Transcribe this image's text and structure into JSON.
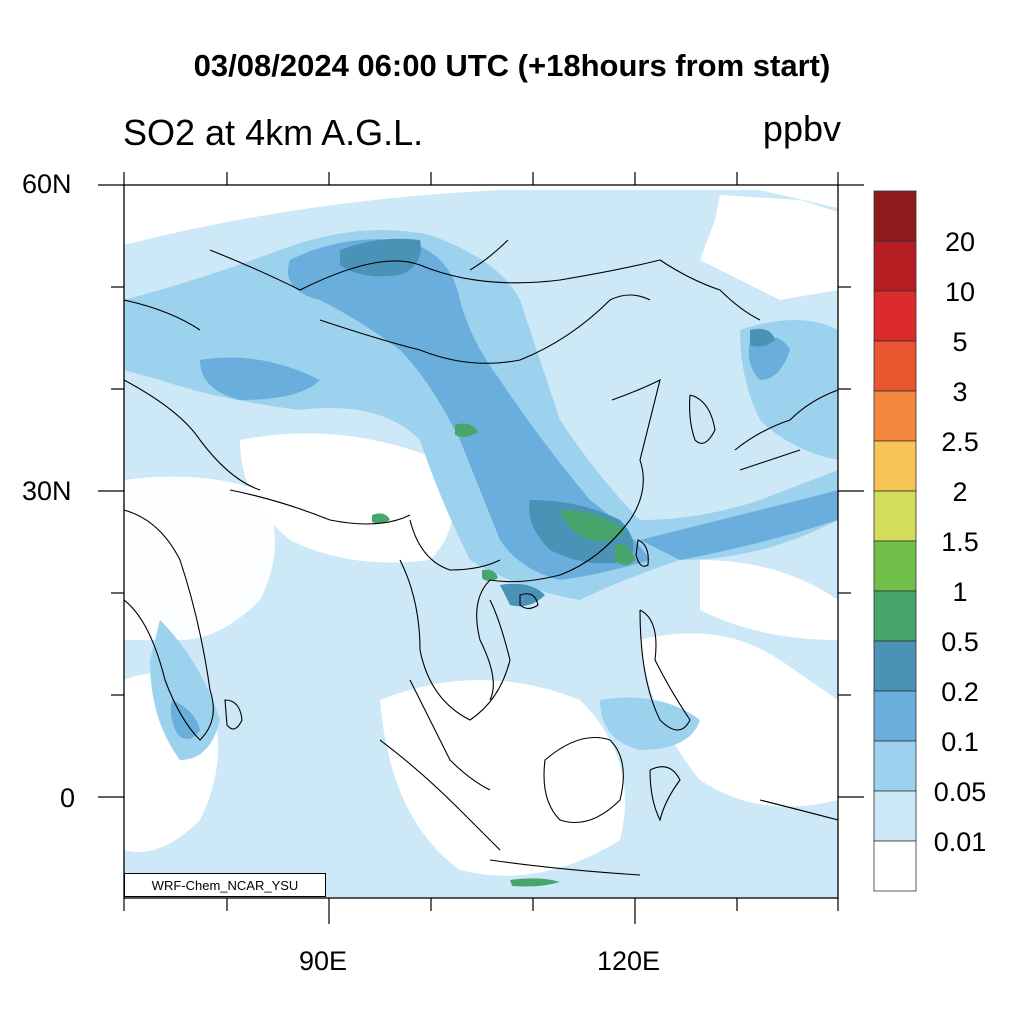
{
  "title": "03/08/2024 06:00 UTC (+18hours from start)",
  "subtitle": "SO2 at 4km A.G.L.",
  "units": "ppbv",
  "credit": "WRF-Chem_NCAR_YSU",
  "axes": {
    "lat_labels": [
      "60N",
      "30N",
      "0"
    ],
    "lon_labels": [
      "90E",
      "120E"
    ]
  },
  "colorbar": {
    "labels": [
      "20",
      "10",
      "5",
      "3",
      "2.5",
      "2",
      "1.5",
      "1",
      "0.5",
      "0.2",
      "0.1",
      "0.05",
      "0.01"
    ],
    "colors": [
      "#8e1b1b",
      "#b81c23",
      "#dc2b2b",
      "#e9552e",
      "#f4873b",
      "#f8c455",
      "#d2dd5c",
      "#72c04c",
      "#48a56b",
      "#4a92b6",
      "#69aedc",
      "#9cd2ee",
      "#cde8f7",
      "#ffffff"
    ]
  },
  "palette": {
    "lightest": "#cde8f7",
    "light": "#9cd2ee",
    "medium": "#69aedc",
    "steel": "#4a92b6",
    "green": "#48a56b"
  }
}
